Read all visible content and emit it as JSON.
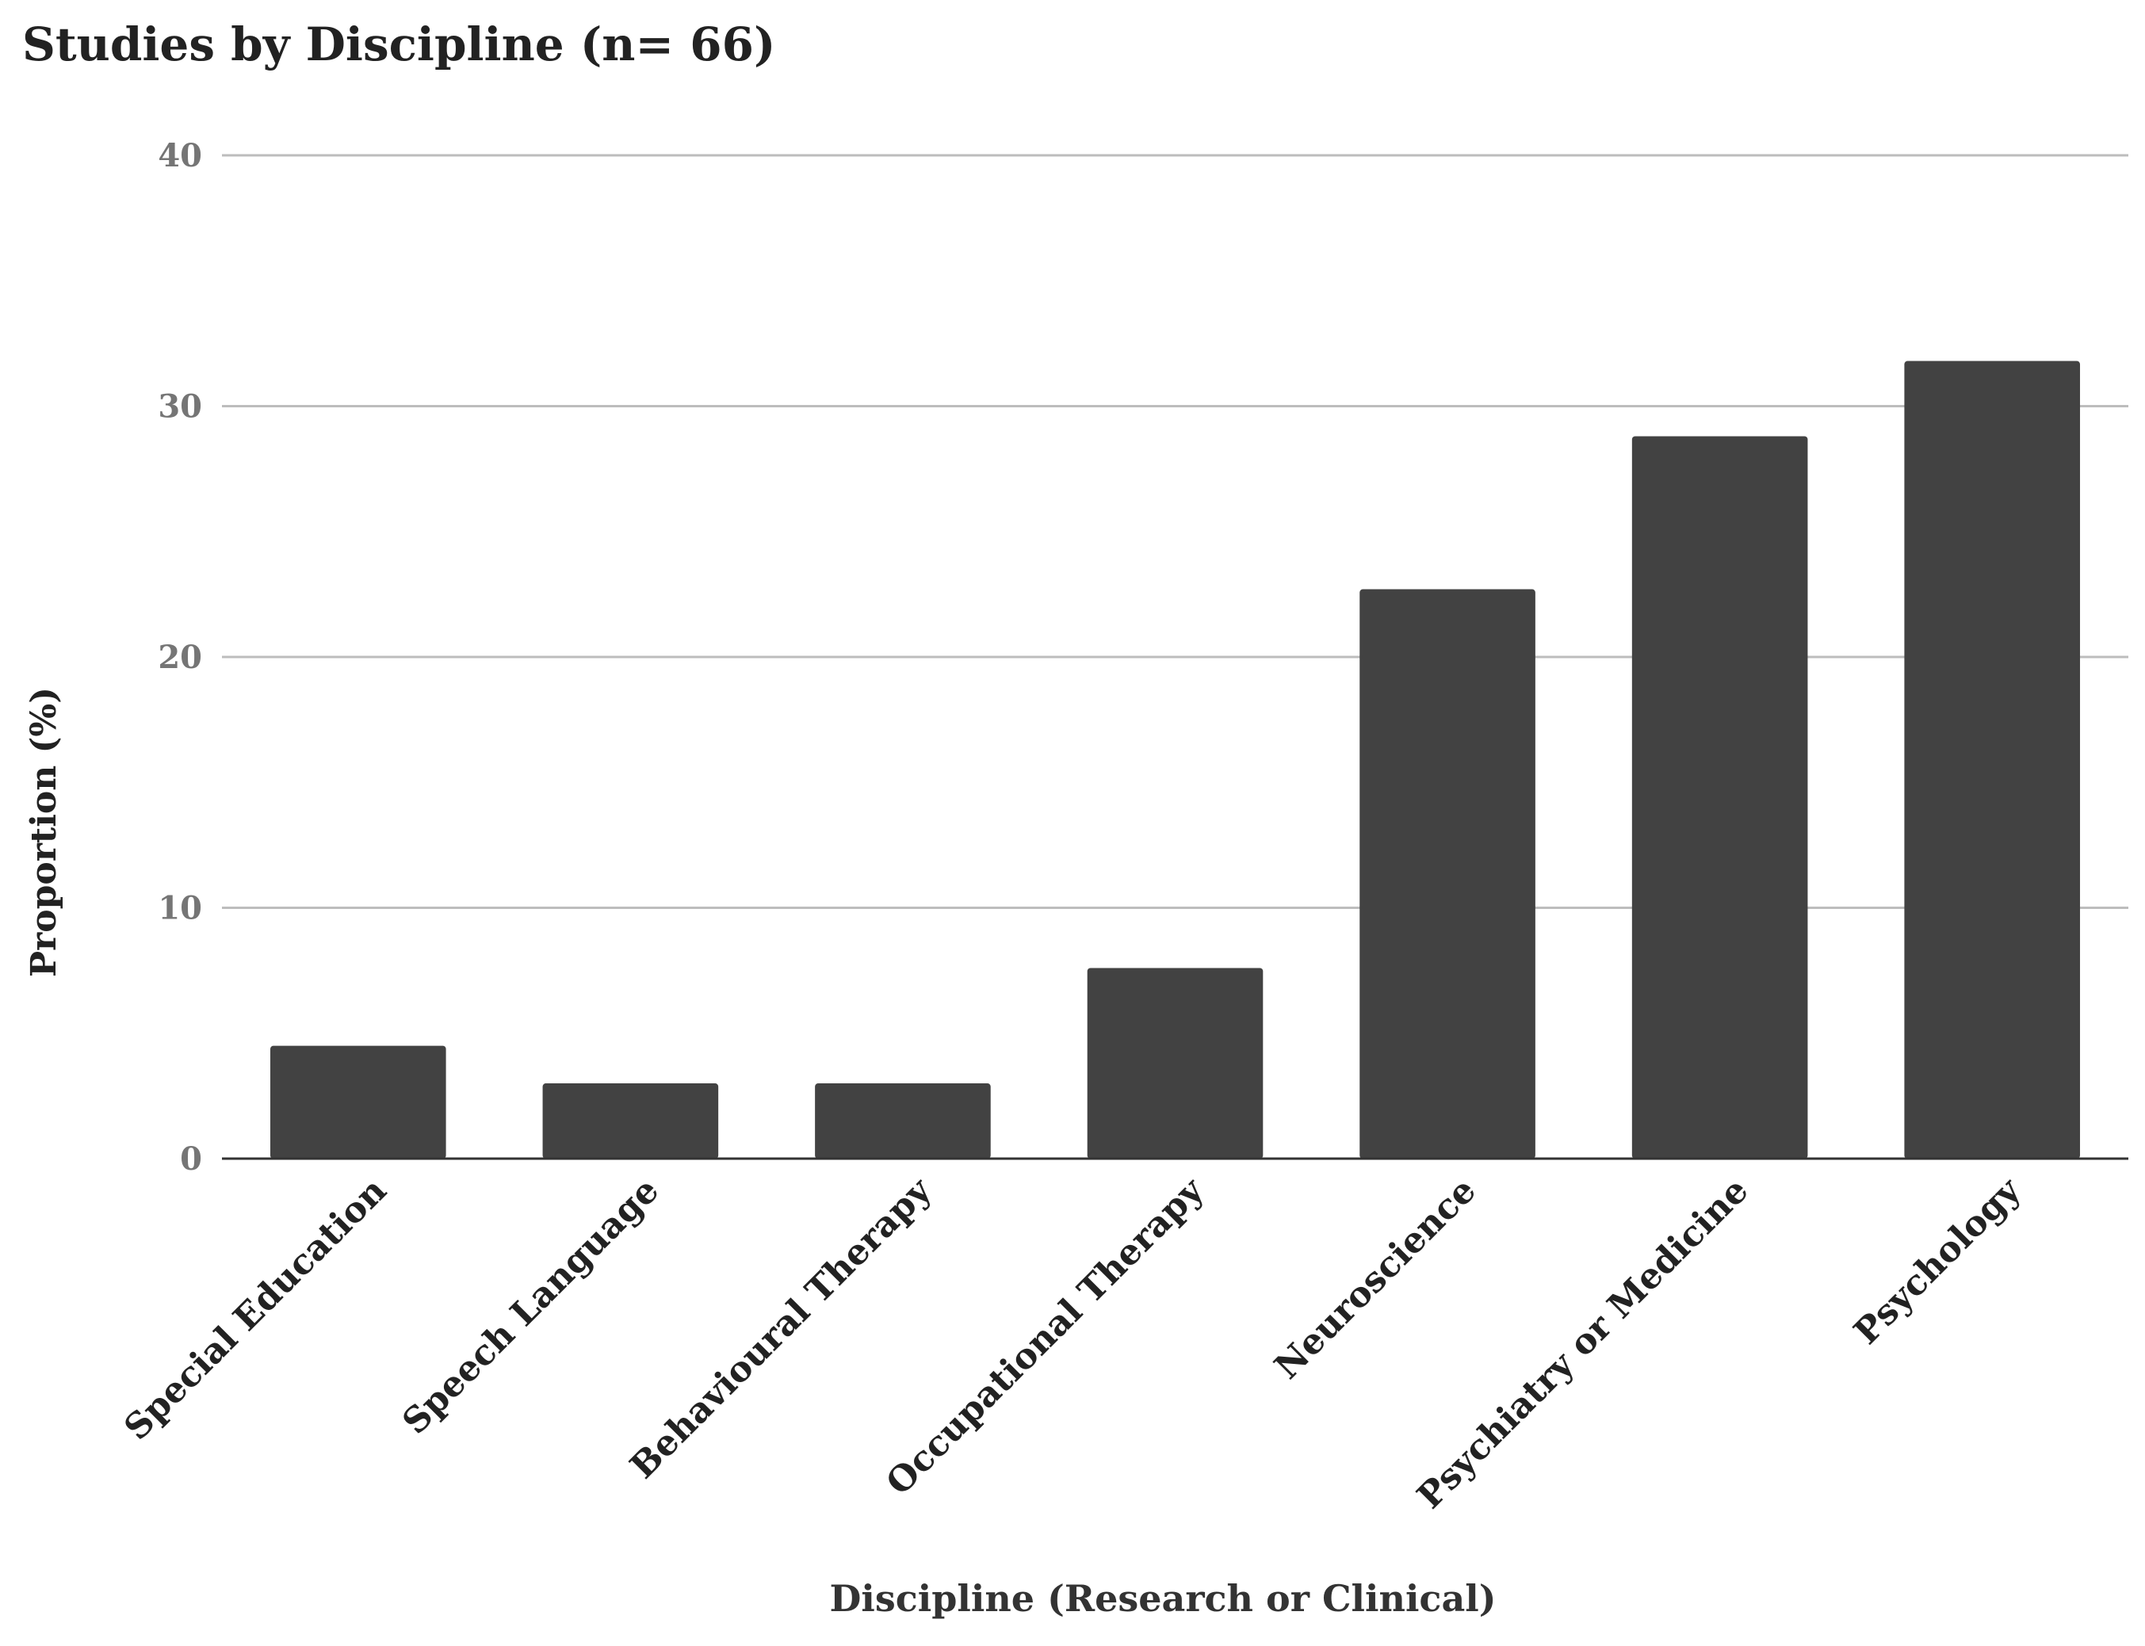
{
  "chart_data": {
    "type": "bar",
    "title": "Studies by Discipline (n= 66)",
    "xlabel": "Discipline (Research or Clinical)",
    "ylabel": "Proportion (%)",
    "categories": [
      "Special Education",
      "Speech Language",
      "Behavioural Therapy",
      "Occupational Therapy",
      "Neuroscience",
      "Psychiatry or Medicine",
      "Psychology"
    ],
    "values": [
      4.5,
      3.0,
      3.0,
      7.6,
      22.7,
      28.8,
      31.8
    ],
    "ylim": [
      0,
      40
    ],
    "yticks": [
      "0",
      "10",
      "20",
      "30",
      "40"
    ],
    "grid": true,
    "legend": "none",
    "colors": {
      "bar": "#424242",
      "grid": "#bdbdbd",
      "axis": "#333333",
      "tick_text": "#757575",
      "label_text": "#222222"
    }
  }
}
